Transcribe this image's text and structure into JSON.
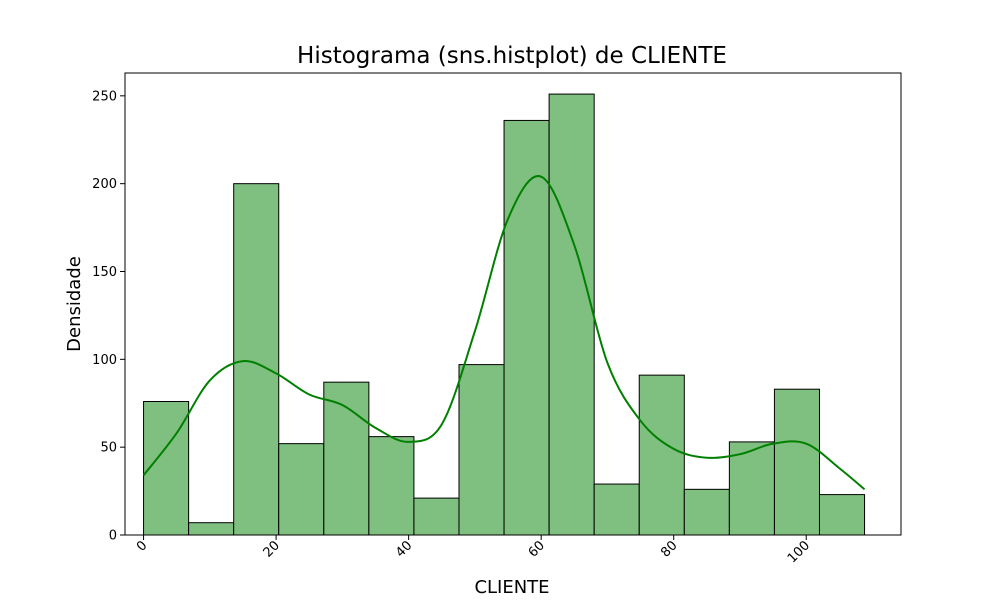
{
  "chart_data": {
    "type": "bar",
    "title": "Histograma (sns.histplot) de CLIENTE",
    "xlabel": "CLIENTE",
    "ylabel": "Densidade",
    "bin_edges": [
      0,
      6.8,
      13.6,
      20.4,
      27.2,
      34.0,
      40.8,
      47.6,
      54.4,
      61.2,
      68.0,
      74.8,
      81.6,
      88.4,
      95.2,
      102.0,
      108.8
    ],
    "values": [
      76,
      7,
      200,
      52,
      87,
      56,
      21,
      97,
      236,
      251,
      29,
      91,
      26,
      53,
      83,
      23
    ],
    "kde": {
      "x": [
        0,
        5,
        10,
        15,
        20,
        25,
        30,
        35,
        40,
        45,
        50,
        55,
        60,
        65,
        70,
        75,
        80,
        85,
        90,
        95,
        100,
        105,
        108.8
      ],
      "y": [
        34,
        58,
        88,
        99,
        92,
        80,
        74,
        61,
        53,
        63,
        116,
        180,
        204,
        165,
        98,
        65,
        49,
        44,
        46,
        52,
        52,
        38,
        26
      ]
    },
    "xlim": [
      -2.8,
      114.3
    ],
    "ylim": [
      0,
      263
    ],
    "xticks": [
      0,
      20,
      40,
      60,
      80,
      100
    ],
    "yticks": [
      0,
      50,
      100,
      150,
      200,
      250
    ],
    "grid": false,
    "colors": {
      "bar_fill": "#7fbf7f",
      "bar_edge": "#000000",
      "kde_line": "#008000"
    }
  }
}
